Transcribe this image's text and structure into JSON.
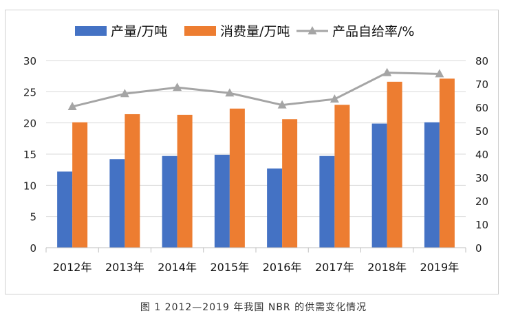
{
  "caption": "图 1  2012—2019 年我国 NBR 的供需变化情况",
  "chart_data": {
    "type": "bar",
    "categories": [
      "2012年",
      "2013年",
      "2014年",
      "2015年",
      "2016年",
      "2017年",
      "2018年",
      "2019年"
    ],
    "series": [
      {
        "name": "产量/万吨",
        "type": "bar",
        "axis": "left",
        "color": "#4472c4",
        "values": [
          12.2,
          14.2,
          14.7,
          14.9,
          12.7,
          14.7,
          19.9,
          20.1
        ]
      },
      {
        "name": "消费量/万吨",
        "type": "bar",
        "axis": "left",
        "color": "#ed7d31",
        "values": [
          20.1,
          21.4,
          21.3,
          22.3,
          20.6,
          22.9,
          26.6,
          27.1
        ]
      },
      {
        "name": "产品自给率/%",
        "type": "line",
        "axis": "right",
        "color": "#a5a5a5",
        "values": [
          60.3,
          65.8,
          68.5,
          66.1,
          61.0,
          63.5,
          74.8,
          74.3
        ]
      }
    ],
    "ylim_left": [
      0,
      30
    ],
    "yticks_left": [
      "0",
      "5",
      "10",
      "15",
      "20",
      "25",
      "30"
    ],
    "ylim_right": [
      0,
      80
    ],
    "yticks_right": [
      "0",
      "10",
      "20",
      "30",
      "40",
      "50",
      "60",
      "70",
      "80"
    ],
    "legend_position": "top",
    "grid": true
  }
}
